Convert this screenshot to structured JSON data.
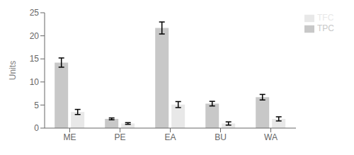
{
  "chart_data": {
    "type": "bar",
    "categories": [
      "ME",
      "PE",
      "EA",
      "BU",
      "WA"
    ],
    "series": [
      {
        "name": "TPC",
        "color": "#c8c8c8",
        "values": [
          14.2,
          2.0,
          21.7,
          5.3,
          6.7
        ],
        "errors": [
          1.0,
          0.2,
          1.3,
          0.5,
          0.6
        ]
      },
      {
        "name": "TFC",
        "color": "#e8e8e8",
        "values": [
          3.5,
          1.0,
          5.1,
          1.0,
          2.0
        ],
        "errors": [
          0.55,
          0.18,
          0.65,
          0.35,
          0.45
        ]
      }
    ],
    "ylabel": "Units",
    "ylim": [
      0,
      25
    ],
    "yticks": [
      0,
      5,
      10,
      15,
      20,
      25
    ],
    "grid": false,
    "legend": "right"
  }
}
